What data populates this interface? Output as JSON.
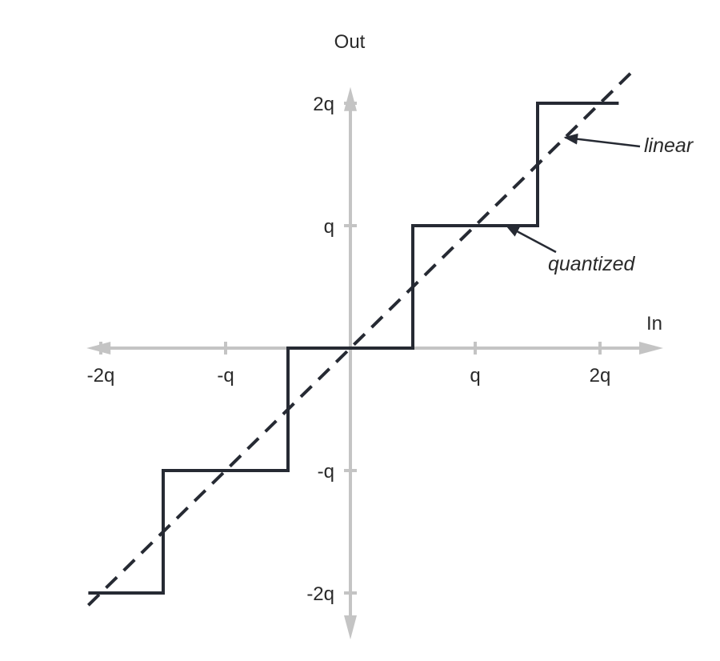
{
  "chart_data": {
    "type": "line",
    "xlabel": "In",
    "ylabel": "Out",
    "xlim": [
      -2.05,
      2.25
    ],
    "ylim": [
      -2.15,
      2.1
    ],
    "x_ticks": [
      {
        "value": -2,
        "label": "-2q"
      },
      {
        "value": -1,
        "label": "-q"
      },
      {
        "value": 1,
        "label": "q"
      },
      {
        "value": 2,
        "label": "2q"
      }
    ],
    "y_ticks": [
      {
        "value": 2,
        "label": "2q"
      },
      {
        "value": 1,
        "label": "q"
      },
      {
        "value": -1,
        "label": "-q"
      },
      {
        "value": -2,
        "label": "-2q"
      }
    ],
    "grid": false,
    "series": [
      {
        "name": "quantized",
        "style": "solid",
        "color": "#262a33",
        "points": [
          [
            -2.1,
            -2.0
          ],
          [
            -1.5,
            -2.0
          ],
          [
            -1.5,
            -1.0
          ],
          [
            -0.5,
            -1.0
          ],
          [
            -0.5,
            0.0
          ],
          [
            0.5,
            0.0
          ],
          [
            0.5,
            1.0
          ],
          [
            1.5,
            1.0
          ],
          [
            1.5,
            2.0
          ],
          [
            2.15,
            2.0
          ]
        ]
      },
      {
        "name": "linear",
        "style": "dashed",
        "color": "#262a33",
        "points": [
          [
            -2.1,
            -2.1
          ],
          [
            2.25,
            2.25
          ]
        ]
      }
    ],
    "annotations": [
      {
        "text": "linear",
        "target": [
          1.72,
          1.72
        ]
      },
      {
        "text": "quantized",
        "target": [
          1.25,
          1.0
        ]
      }
    ],
    "axis_color": "#c4c4c4"
  }
}
